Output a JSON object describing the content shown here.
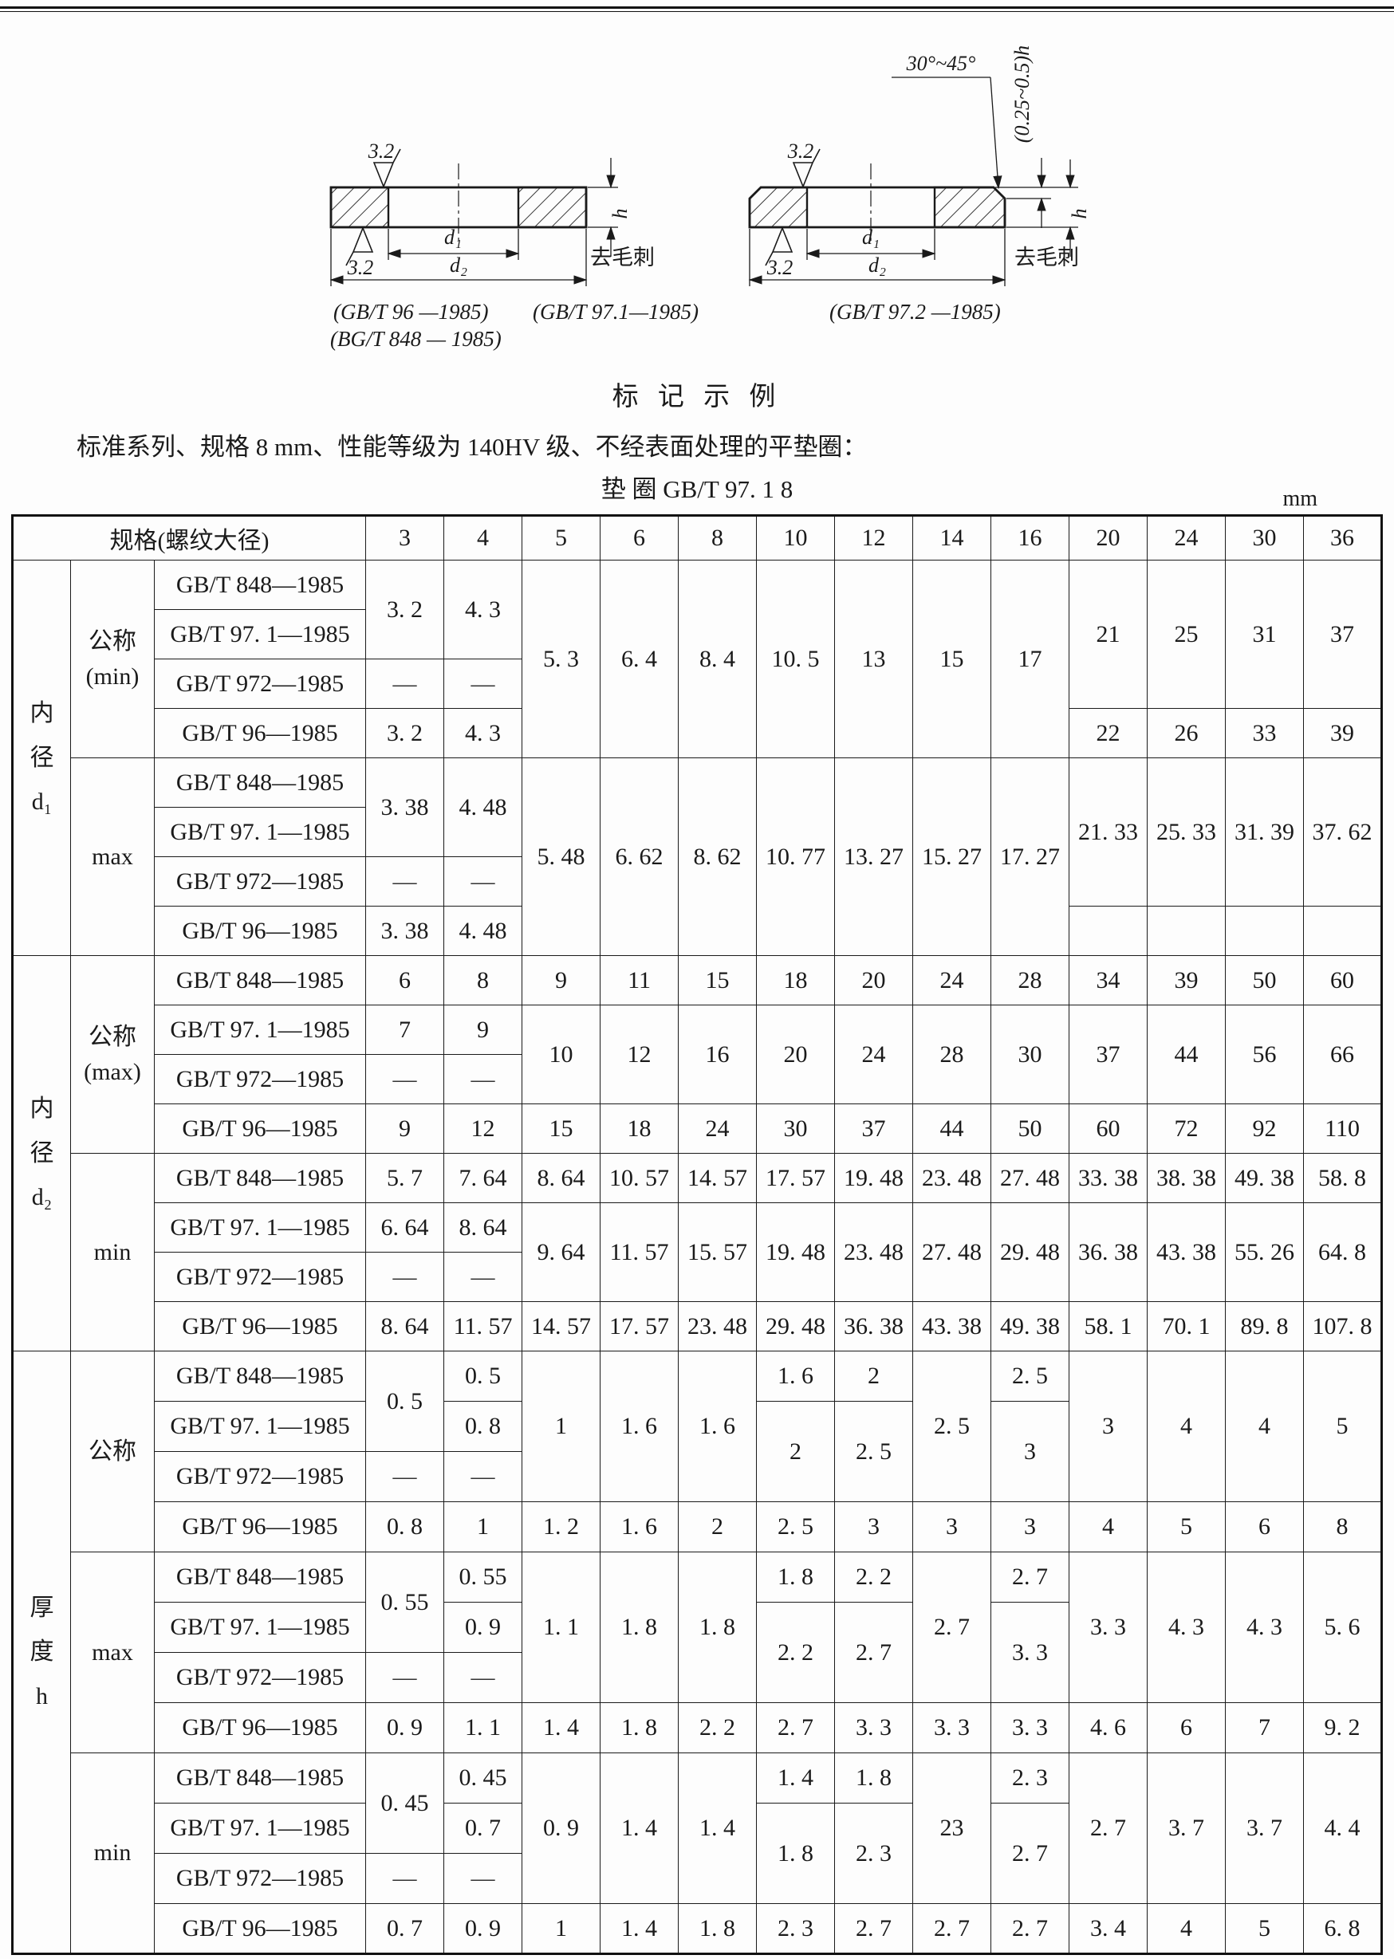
{
  "page": {
    "heading": "标 记 示 例",
    "paragraph": "标准系列、规格 8 mm、性能等级为 140HV 级、不经表面处理的平垫圈：",
    "designation": "垫 圈 GB/T 97. 1 8",
    "unit": "mm"
  },
  "diagram": {
    "roughness": "3.2",
    "d1_label": "d₁",
    "d2_label": "d₂",
    "h_label": "h",
    "deburr": "去毛刺",
    "angle": "30°~45°",
    "chamfer": "(0.25~0.5)h",
    "captions": {
      "gbt96": "(GB/T 96 —1985)",
      "gbt971": "(GB/T 97.1—1985)",
      "bgt848": "(BG/T 848 — 1985)",
      "gbt972": "(GB/T 97.2 —1985)"
    }
  },
  "table": {
    "header_label": "规格(螺纹大径)",
    "sizes": [
      "3",
      "4",
      "5",
      "6",
      "8",
      "10",
      "12",
      "14",
      "16",
      "20",
      "24",
      "30",
      "36"
    ],
    "rows": [
      {
        "start": "sec",
        "cells": [
          {
            "v": "内\n径\nd₁",
            "rs": 8,
            "kind": "section-label"
          },
          {
            "v": "公称\n(min)",
            "rs": 4,
            "kind": "sub-label"
          },
          {
            "v": "GB/T 848—1985",
            "kind": "standard"
          },
          {
            "v": "3. 2",
            "rs": 2
          },
          {
            "v": "4. 3",
            "rs": 2
          },
          {
            "v": "5. 3",
            "rs": 4
          },
          {
            "v": "6. 4",
            "rs": 4
          },
          {
            "v": "8. 4",
            "rs": 4
          },
          {
            "v": "10. 5",
            "rs": 4
          },
          {
            "v": "13",
            "rs": 4
          },
          {
            "v": "15",
            "rs": 4
          },
          {
            "v": "17",
            "rs": 4
          },
          {
            "v": "21",
            "rs": 3
          },
          {
            "v": "25",
            "rs": 3
          },
          {
            "v": "31",
            "rs": 3
          },
          {
            "v": "37",
            "rs": 3
          }
        ]
      },
      {
        "cells": [
          {
            "v": "GB/T 97. 1—1985",
            "kind": "standard"
          }
        ]
      },
      {
        "cells": [
          {
            "v": "GB/T 972—1985",
            "kind": "standard"
          },
          {
            "v": "—"
          },
          {
            "v": "—"
          }
        ]
      },
      {
        "cells": [
          {
            "v": "GB/T 96—1985",
            "kind": "standard"
          },
          {
            "v": "3. 2"
          },
          {
            "v": "4. 3"
          },
          {
            "v": "22"
          },
          {
            "v": "26"
          },
          {
            "v": "33"
          },
          {
            "v": "39"
          }
        ]
      },
      {
        "start": "sub",
        "cells": [
          {
            "v": "max",
            "rs": 4,
            "kind": "sub-label"
          },
          {
            "v": "GB/T 848—1985",
            "kind": "standard"
          },
          {
            "v": "3. 38",
            "rs": 2
          },
          {
            "v": "4. 48",
            "rs": 2
          },
          {
            "v": "5. 48",
            "rs": 4
          },
          {
            "v": "6. 62",
            "rs": 4
          },
          {
            "v": "8. 62",
            "rs": 4
          },
          {
            "v": "10. 77",
            "rs": 4
          },
          {
            "v": "13. 27",
            "rs": 4
          },
          {
            "v": "15. 27",
            "rs": 4
          },
          {
            "v": "17. 27",
            "rs": 4
          },
          {
            "v": "21. 33",
            "rs": 3
          },
          {
            "v": "25. 33",
            "rs": 3
          },
          {
            "v": "31. 39",
            "rs": 3
          },
          {
            "v": "37. 62",
            "rs": 3
          }
        ]
      },
      {
        "cells": [
          {
            "v": "GB/T 97. 1—1985",
            "kind": "standard"
          }
        ]
      },
      {
        "cells": [
          {
            "v": "GB/T 972—1985",
            "kind": "standard"
          },
          {
            "v": "—"
          },
          {
            "v": "—"
          }
        ]
      },
      {
        "cells": [
          {
            "v": "GB/T 96—1985",
            "kind": "standard"
          },
          {
            "v": "3. 38"
          },
          {
            "v": "4. 48"
          },
          {
            "v": ""
          },
          {
            "v": ""
          },
          {
            "v": ""
          },
          {
            "v": ""
          }
        ]
      },
      {
        "start": "sec",
        "cells": [
          {
            "v": "内\n径\nd₂",
            "rs": 8,
            "kind": "section-label"
          },
          {
            "v": "公称\n(max)",
            "rs": 4,
            "kind": "sub-label"
          },
          {
            "v": "GB/T 848—1985",
            "kind": "standard"
          },
          {
            "v": "6"
          },
          {
            "v": "8"
          },
          {
            "v": "9"
          },
          {
            "v": "11"
          },
          {
            "v": "15"
          },
          {
            "v": "18"
          },
          {
            "v": "20"
          },
          {
            "v": "24"
          },
          {
            "v": "28"
          },
          {
            "v": "34"
          },
          {
            "v": "39"
          },
          {
            "v": "50"
          },
          {
            "v": "60"
          }
        ]
      },
      {
        "cells": [
          {
            "v": "GB/T 97. 1—1985",
            "kind": "standard"
          },
          {
            "v": "7"
          },
          {
            "v": "9"
          },
          {
            "v": "10",
            "rs": 2
          },
          {
            "v": "12",
            "rs": 2
          },
          {
            "v": "16",
            "rs": 2
          },
          {
            "v": "20",
            "rs": 2
          },
          {
            "v": "24",
            "rs": 2
          },
          {
            "v": "28",
            "rs": 2
          },
          {
            "v": "30",
            "rs": 2
          },
          {
            "v": "37",
            "rs": 2
          },
          {
            "v": "44",
            "rs": 2
          },
          {
            "v": "56",
            "rs": 2
          },
          {
            "v": "66",
            "rs": 2
          }
        ]
      },
      {
        "cells": [
          {
            "v": "GB/T 972—1985",
            "kind": "standard"
          },
          {
            "v": "—"
          },
          {
            "v": "—"
          }
        ]
      },
      {
        "cells": [
          {
            "v": "GB/T 96—1985",
            "kind": "standard"
          },
          {
            "v": "9"
          },
          {
            "v": "12"
          },
          {
            "v": "15"
          },
          {
            "v": "18"
          },
          {
            "v": "24"
          },
          {
            "v": "30"
          },
          {
            "v": "37"
          },
          {
            "v": "44"
          },
          {
            "v": "50"
          },
          {
            "v": "60"
          },
          {
            "v": "72"
          },
          {
            "v": "92"
          },
          {
            "v": "110"
          }
        ]
      },
      {
        "start": "sub",
        "cells": [
          {
            "v": "min",
            "rs": 4,
            "kind": "sub-label"
          },
          {
            "v": "GB/T 848—1985",
            "kind": "standard"
          },
          {
            "v": "5. 7"
          },
          {
            "v": "7. 64"
          },
          {
            "v": "8. 64"
          },
          {
            "v": "10. 57"
          },
          {
            "v": "14. 57"
          },
          {
            "v": "17. 57"
          },
          {
            "v": "19. 48"
          },
          {
            "v": "23. 48"
          },
          {
            "v": "27. 48"
          },
          {
            "v": "33. 38"
          },
          {
            "v": "38. 38"
          },
          {
            "v": "49. 38"
          },
          {
            "v": "58. 8"
          }
        ]
      },
      {
        "cells": [
          {
            "v": "GB/T 97. 1—1985",
            "kind": "standard"
          },
          {
            "v": "6. 64"
          },
          {
            "v": "8. 64"
          },
          {
            "v": "9. 64",
            "rs": 2
          },
          {
            "v": "11. 57",
            "rs": 2
          },
          {
            "v": "15. 57",
            "rs": 2
          },
          {
            "v": "19. 48",
            "rs": 2
          },
          {
            "v": "23. 48",
            "rs": 2
          },
          {
            "v": "27. 48",
            "rs": 2
          },
          {
            "v": "29. 48",
            "rs": 2
          },
          {
            "v": "36. 38",
            "rs": 2
          },
          {
            "v": "43. 38",
            "rs": 2
          },
          {
            "v": "55. 26",
            "rs": 2
          },
          {
            "v": "64. 8",
            "rs": 2
          }
        ]
      },
      {
        "cells": [
          {
            "v": "GB/T 972—1985",
            "kind": "standard"
          },
          {
            "v": "—"
          },
          {
            "v": "—"
          }
        ]
      },
      {
        "cells": [
          {
            "v": "GB/T 96—1985",
            "kind": "standard"
          },
          {
            "v": "8. 64"
          },
          {
            "v": "11. 57"
          },
          {
            "v": "14. 57"
          },
          {
            "v": "17. 57"
          },
          {
            "v": "23. 48"
          },
          {
            "v": "29. 48"
          },
          {
            "v": "36. 38"
          },
          {
            "v": "43. 38"
          },
          {
            "v": "49. 38"
          },
          {
            "v": "58. 1"
          },
          {
            "v": "70. 1"
          },
          {
            "v": "89. 8"
          },
          {
            "v": "107. 8"
          }
        ]
      },
      {
        "start": "sec",
        "cells": [
          {
            "v": "厚\n度\nh",
            "rs": 12,
            "kind": "section-label"
          },
          {
            "v": "公称",
            "rs": 4,
            "kind": "sub-label"
          },
          {
            "v": "GB/T 848—1985",
            "kind": "standard"
          },
          {
            "v": "0. 5",
            "rs": 2
          },
          {
            "v": "0. 5"
          },
          {
            "v": "1",
            "rs": 3
          },
          {
            "v": "1. 6",
            "rs": 3
          },
          {
            "v": "1. 6",
            "rs": 3
          },
          {
            "v": "1. 6"
          },
          {
            "v": "2"
          },
          {
            "v": "2. 5",
            "rs": 3
          },
          {
            "v": "2. 5"
          },
          {
            "v": "3",
            "rs": 3
          },
          {
            "v": "4",
            "rs": 3
          },
          {
            "v": "4",
            "rs": 3
          },
          {
            "v": "5",
            "rs": 3
          }
        ]
      },
      {
        "cells": [
          {
            "v": "GB/T 97. 1—1985",
            "kind": "standard"
          },
          {
            "v": "0. 8"
          },
          {
            "v": "2",
            "rs": 2
          },
          {
            "v": "2. 5",
            "rs": 2
          },
          {
            "v": "3",
            "rs": 2
          }
        ]
      },
      {
        "cells": [
          {
            "v": "GB/T 972—1985",
            "kind": "standard"
          },
          {
            "v": "—"
          },
          {
            "v": "—"
          }
        ]
      },
      {
        "cells": [
          {
            "v": "GB/T 96—1985",
            "kind": "standard"
          },
          {
            "v": "0. 8"
          },
          {
            "v": "1"
          },
          {
            "v": "1. 2"
          },
          {
            "v": "1. 6"
          },
          {
            "v": "2"
          },
          {
            "v": "2. 5"
          },
          {
            "v": "3"
          },
          {
            "v": "3"
          },
          {
            "v": "3"
          },
          {
            "v": "4"
          },
          {
            "v": "5"
          },
          {
            "v": "6"
          },
          {
            "v": "8"
          }
        ]
      },
      {
        "start": "sub",
        "cells": [
          {
            "v": "max",
            "rs": 4,
            "kind": "sub-label"
          },
          {
            "v": "GB/T 848—1985",
            "kind": "standard"
          },
          {
            "v": "0. 55",
            "rs": 2
          },
          {
            "v": "0. 55"
          },
          {
            "v": "1. 1",
            "rs": 3
          },
          {
            "v": "1. 8",
            "rs": 3
          },
          {
            "v": "1. 8",
            "rs": 3
          },
          {
            "v": "1. 8"
          },
          {
            "v": "2. 2"
          },
          {
            "v": "2. 7",
            "rs": 3
          },
          {
            "v": "2. 7"
          },
          {
            "v": "3. 3",
            "rs": 3
          },
          {
            "v": "4. 3",
            "rs": 3
          },
          {
            "v": "4. 3",
            "rs": 3
          },
          {
            "v": "5. 6",
            "rs": 3
          }
        ]
      },
      {
        "cells": [
          {
            "v": "GB/T 97. 1—1985",
            "kind": "standard"
          },
          {
            "v": "0. 9"
          },
          {
            "v": "2. 2",
            "rs": 2
          },
          {
            "v": "2. 7",
            "rs": 2
          },
          {
            "v": "3. 3",
            "rs": 2
          }
        ]
      },
      {
        "cells": [
          {
            "v": "GB/T 972—1985",
            "kind": "standard"
          },
          {
            "v": "—"
          },
          {
            "v": "—"
          }
        ]
      },
      {
        "cells": [
          {
            "v": "GB/T 96—1985",
            "kind": "standard"
          },
          {
            "v": "0. 9"
          },
          {
            "v": "1. 1"
          },
          {
            "v": "1. 4"
          },
          {
            "v": "1. 8"
          },
          {
            "v": "2. 2"
          },
          {
            "v": "2. 7"
          },
          {
            "v": "3. 3"
          },
          {
            "v": "3. 3"
          },
          {
            "v": "3. 3"
          },
          {
            "v": "4. 6"
          },
          {
            "v": "6"
          },
          {
            "v": "7"
          },
          {
            "v": "9. 2"
          }
        ]
      },
      {
        "start": "sub",
        "cells": [
          {
            "v": "min",
            "rs": 4,
            "kind": "sub-label"
          },
          {
            "v": "GB/T 848—1985",
            "kind": "standard"
          },
          {
            "v": "0. 45",
            "rs": 2
          },
          {
            "v": "0. 45"
          },
          {
            "v": "0. 9",
            "rs": 3
          },
          {
            "v": "1. 4",
            "rs": 3
          },
          {
            "v": "1. 4",
            "rs": 3
          },
          {
            "v": "1. 4"
          },
          {
            "v": "1. 8"
          },
          {
            "v": "23",
            "rs": 3
          },
          {
            "v": "2. 3"
          },
          {
            "v": "2. 7",
            "rs": 3
          },
          {
            "v": "3. 7",
            "rs": 3
          },
          {
            "v": "3. 7",
            "rs": 3
          },
          {
            "v": "4. 4",
            "rs": 3
          }
        ]
      },
      {
        "cells": [
          {
            "v": "GB/T 97. 1—1985",
            "kind": "standard"
          },
          {
            "v": "0. 7"
          },
          {
            "v": "1. 8",
            "rs": 2
          },
          {
            "v": "2. 3",
            "rs": 2
          },
          {
            "v": "2. 7",
            "rs": 2
          }
        ]
      },
      {
        "cells": [
          {
            "v": "GB/T 972—1985",
            "kind": "standard"
          },
          {
            "v": "—"
          },
          {
            "v": "—"
          }
        ]
      },
      {
        "cells": [
          {
            "v": "GB/T 96—1985",
            "kind": "standard"
          },
          {
            "v": "0. 7"
          },
          {
            "v": "0. 9"
          },
          {
            "v": "1"
          },
          {
            "v": "1. 4"
          },
          {
            "v": "1. 8"
          },
          {
            "v": "2. 3"
          },
          {
            "v": "2. 7"
          },
          {
            "v": "2. 7"
          },
          {
            "v": "2. 7"
          },
          {
            "v": "3. 4"
          },
          {
            "v": "4"
          },
          {
            "v": "5"
          },
          {
            "v": "6. 8"
          }
        ]
      }
    ]
  }
}
